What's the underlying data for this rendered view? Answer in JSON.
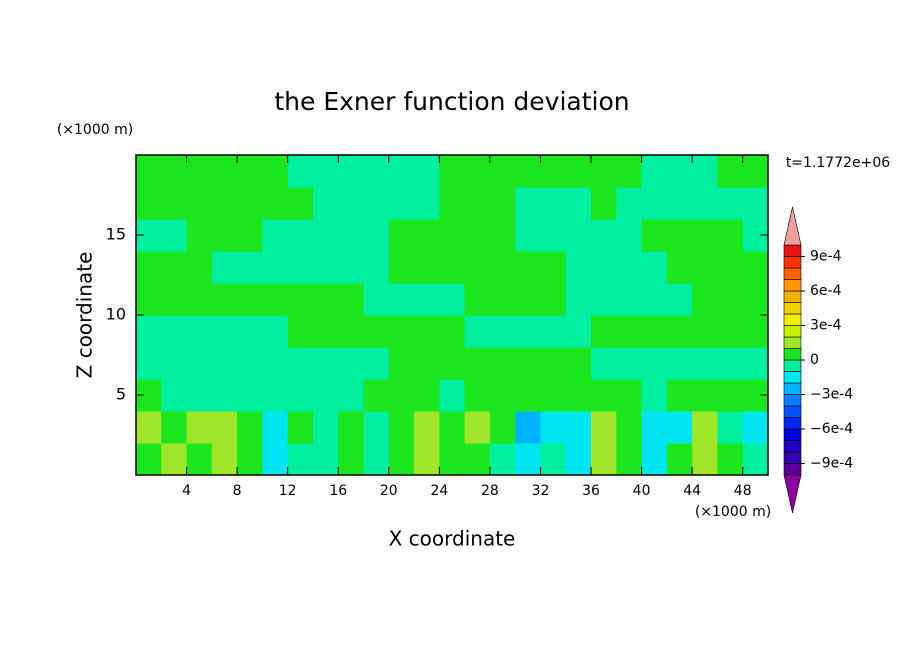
{
  "chart_data": {
    "type": "contour",
    "title": "the Exner function deviation",
    "xlabel": "X coordinate",
    "ylabel": "Z coordinate",
    "x_unit": "(×1000 m)",
    "y_unit": "(×1000 m)",
    "time_label": "t=1.1772e+06",
    "xlim": [
      0,
      50
    ],
    "ylim": [
      0,
      20
    ],
    "xticks": [
      4,
      8,
      12,
      16,
      20,
      24,
      28,
      32,
      36,
      40,
      44,
      48
    ],
    "yticks": [
      5,
      10,
      15
    ],
    "x": [
      1,
      3,
      5,
      7,
      9,
      11,
      13,
      15,
      17,
      19,
      21,
      23,
      25,
      27,
      29,
      31,
      33,
      35,
      37,
      39,
      41,
      43,
      45,
      47,
      49
    ],
    "z": [
      1,
      3,
      5,
      7,
      9,
      11,
      13,
      15,
      17,
      19
    ],
    "levels": [
      -0.001,
      -0.0009,
      -0.0008,
      -0.0007,
      -0.0006,
      -0.0005,
      -0.0004,
      -0.0003,
      -0.0002,
      -0.0001,
      0,
      0.0001,
      0.0002,
      0.0003,
      0.0004,
      0.0005,
      0.0006,
      0.0007,
      0.0008,
      0.0009,
      0.001
    ],
    "colors": [
      "#5a0096",
      "#3c00b4",
      "#1e00c8",
      "#0000dc",
      "#0028f0",
      "#0050ff",
      "#0082ff",
      "#00b4ff",
      "#00e6f0",
      "#00eea0",
      "#1ee61e",
      "#a0e628",
      "#c8f000",
      "#f0f000",
      "#f0d200",
      "#f0b400",
      "#ff9600",
      "#ff6400",
      "#ff3200",
      "#e61414"
    ],
    "under_color": "#8c00a0",
    "over_color": "#f0a0a0",
    "colorbar_ticks": [
      {
        "value": 0.0009,
        "label": "9e-4"
      },
      {
        "value": 0.0006,
        "label": "6e-4"
      },
      {
        "value": 0.0003,
        "label": "3e-4"
      },
      0,
      {
        "value": -0.0003,
        "label": "−3e-4"
      },
      {
        "value": -0.0006,
        "label": "−6e-4"
      },
      {
        "value": -0.0009,
        "label": "−9e-4"
      }
    ],
    "values": [
      [
        5e-05,
        0.00015,
        5e-05,
        0.00015,
        5e-05,
        -0.00015,
        -5e-05,
        -5e-05,
        5e-05,
        -5e-05,
        5e-05,
        0.00015,
        5e-05,
        5e-05,
        -5e-05,
        -0.00015,
        -5e-05,
        -0.00015,
        0.00015,
        5e-05,
        -0.00015,
        5e-05,
        0.00015,
        5e-05,
        -5e-05
      ],
      [
        0.00015,
        5e-05,
        0.00015,
        0.00015,
        5e-05,
        -0.00015,
        5e-05,
        -5e-05,
        5e-05,
        -5e-05,
        5e-05,
        0.00015,
        5e-05,
        0.00015,
        5e-05,
        -0.00025,
        -0.00015,
        -0.00015,
        0.00015,
        5e-05,
        -0.00015,
        -0.00015,
        0.00015,
        -5e-05,
        -0.00015
      ],
      [
        5e-05,
        -5e-05,
        -5e-05,
        -5e-05,
        -5e-05,
        -5e-05,
        -5e-05,
        -5e-05,
        -5e-05,
        5e-05,
        5e-05,
        5e-05,
        -5e-05,
        5e-05,
        5e-05,
        5e-05,
        5e-05,
        5e-05,
        5e-05,
        5e-05,
        -5e-05,
        5e-05,
        5e-05,
        5e-05,
        5e-05
      ],
      [
        -5e-05,
        -5e-05,
        -5e-05,
        -5e-05,
        -5e-05,
        -5e-05,
        -5e-05,
        -5e-05,
        -5e-05,
        -5e-05,
        5e-05,
        5e-05,
        5e-05,
        5e-05,
        5e-05,
        5e-05,
        5e-05,
        5e-05,
        -5e-05,
        -5e-05,
        -5e-05,
        -5e-05,
        -5e-05,
        -5e-05,
        -5e-05
      ],
      [
        -5e-05,
        -5e-05,
        -5e-05,
        -5e-05,
        -5e-05,
        -5e-05,
        5e-05,
        5e-05,
        5e-05,
        5e-05,
        5e-05,
        5e-05,
        5e-05,
        -5e-05,
        -5e-05,
        -5e-05,
        -5e-05,
        -5e-05,
        5e-05,
        5e-05,
        5e-05,
        5e-05,
        5e-05,
        5e-05,
        5e-05
      ],
      [
        5e-05,
        5e-05,
        5e-05,
        5e-05,
        5e-05,
        5e-05,
        5e-05,
        5e-05,
        5e-05,
        -5e-05,
        -5e-05,
        -5e-05,
        -5e-05,
        5e-05,
        5e-05,
        5e-05,
        5e-05,
        -5e-05,
        -5e-05,
        -5e-05,
        -5e-05,
        -5e-05,
        5e-05,
        5e-05,
        5e-05
      ],
      [
        5e-05,
        5e-05,
        5e-05,
        -5e-05,
        -5e-05,
        -5e-05,
        -5e-05,
        -5e-05,
        -5e-05,
        -5e-05,
        5e-05,
        5e-05,
        5e-05,
        5e-05,
        5e-05,
        5e-05,
        5e-05,
        -5e-05,
        -5e-05,
        -5e-05,
        -5e-05,
        5e-05,
        5e-05,
        5e-05,
        5e-05
      ],
      [
        -5e-05,
        -5e-05,
        5e-05,
        5e-05,
        5e-05,
        -5e-05,
        -5e-05,
        -5e-05,
        -5e-05,
        -5e-05,
        5e-05,
        5e-05,
        5e-05,
        5e-05,
        5e-05,
        -5e-05,
        -5e-05,
        -5e-05,
        -5e-05,
        -5e-05,
        5e-05,
        5e-05,
        5e-05,
        5e-05,
        -5e-05
      ],
      [
        5e-05,
        5e-05,
        5e-05,
        5e-05,
        5e-05,
        5e-05,
        5e-05,
        -5e-05,
        -5e-05,
        -5e-05,
        -5e-05,
        -5e-05,
        5e-05,
        5e-05,
        5e-05,
        -5e-05,
        -5e-05,
        -5e-05,
        5e-05,
        -5e-05,
        -5e-05,
        -5e-05,
        -5e-05,
        -5e-05,
        -5e-05
      ],
      [
        5e-05,
        5e-05,
        5e-05,
        5e-05,
        5e-05,
        5e-05,
        -5e-05,
        -5e-05,
        -5e-05,
        -5e-05,
        -5e-05,
        -5e-05,
        5e-05,
        5e-05,
        5e-05,
        5e-05,
        5e-05,
        5e-05,
        5e-05,
        5e-05,
        -5e-05,
        -5e-05,
        -5e-05,
        5e-05,
        5e-05
      ]
    ]
  }
}
